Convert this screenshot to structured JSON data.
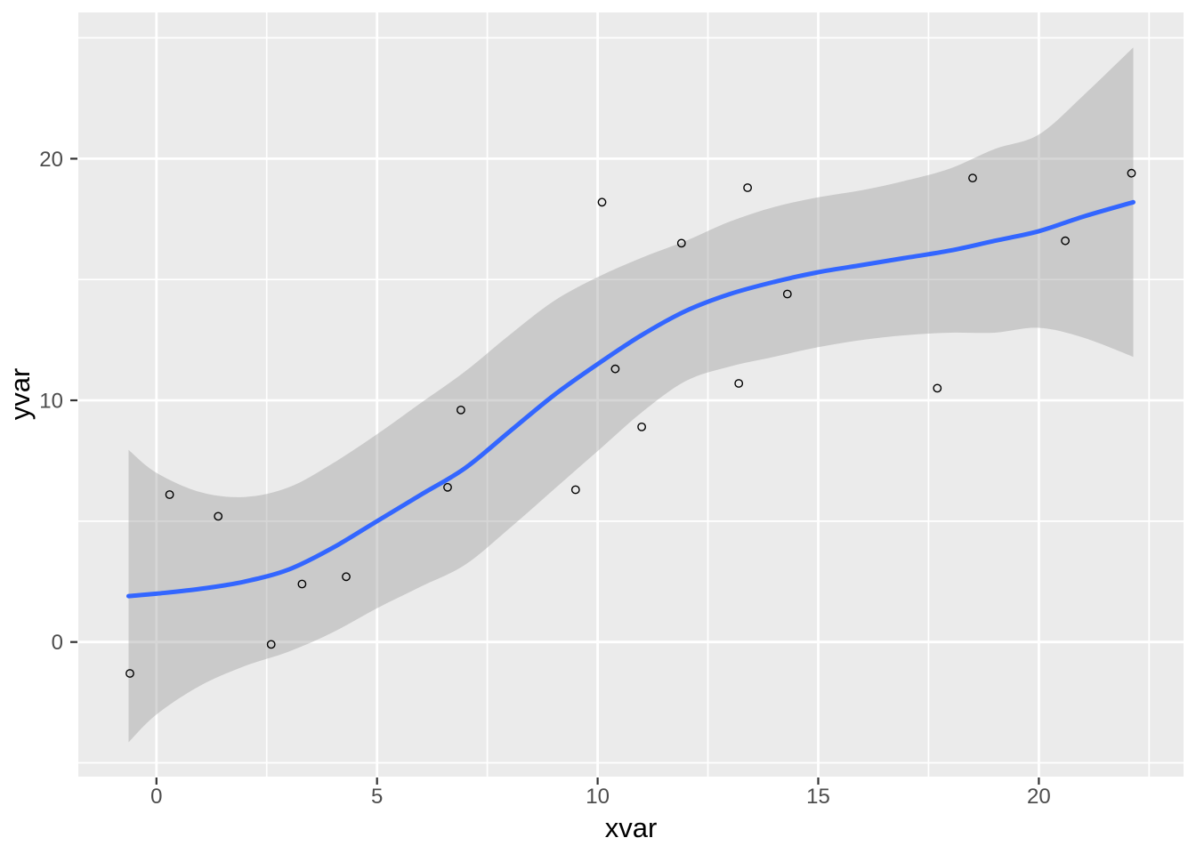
{
  "chart_data": {
    "type": "scatter",
    "title": "",
    "xlabel": "xvar",
    "ylabel": "yvar",
    "xlim": [
      -1.77,
      23.28
    ],
    "ylim": [
      -5.57,
      26.05
    ],
    "x_major_ticks": [
      0,
      5,
      10,
      15,
      20
    ],
    "x_minor_ticks": [
      2.5,
      7.5,
      12.5,
      17.5,
      22.5
    ],
    "y_major_ticks": [
      0,
      10,
      20
    ],
    "y_minor_ticks": [
      -5,
      5,
      15,
      25
    ],
    "grid": true,
    "legend": "none",
    "points": [
      [
        -0.6,
        -1.3
      ],
      [
        0.3,
        6.1
      ],
      [
        1.4,
        5.2
      ],
      [
        2.6,
        -0.1
      ],
      [
        3.3,
        2.4
      ],
      [
        4.3,
        2.7
      ],
      [
        6.6,
        6.4
      ],
      [
        6.9,
        9.6
      ],
      [
        9.5,
        6.3
      ],
      [
        10.1,
        18.2
      ],
      [
        10.4,
        11.3
      ],
      [
        11.0,
        8.9
      ],
      [
        11.9,
        16.5
      ],
      [
        13.2,
        10.7
      ],
      [
        13.4,
        18.8
      ],
      [
        14.3,
        14.4
      ],
      [
        17.7,
        10.5
      ],
      [
        18.5,
        19.2
      ],
      [
        20.6,
        16.6
      ],
      [
        22.1,
        19.4
      ]
    ],
    "smooth_line": {
      "method": "loess",
      "x": [
        -0.63,
        0,
        1,
        2,
        3,
        4,
        5,
        6,
        7,
        8,
        9,
        10,
        11,
        12,
        13,
        14,
        15,
        16,
        17,
        18,
        19,
        20,
        21,
        22.14
      ],
      "y": [
        1.9,
        2.0,
        2.2,
        2.5,
        3.0,
        3.9,
        5.0,
        6.1,
        7.2,
        8.7,
        10.2,
        11.5,
        12.7,
        13.7,
        14.4,
        14.9,
        15.3,
        15.6,
        15.9,
        16.2,
        16.6,
        17.0,
        17.6,
        18.2
      ],
      "ci_halfwidth": [
        6.05,
        5.0,
        4.0,
        3.5,
        3.4,
        3.5,
        3.6,
        3.8,
        4.0,
        4.0,
        3.9,
        3.6,
        3.2,
        2.9,
        3.0,
        3.1,
        3.1,
        3.1,
        3.2,
        3.4,
        3.8,
        4.0,
        5.0,
        6.4
      ]
    },
    "colors": {
      "panel_background": "#EBEBEB",
      "gridline": "#FFFFFF",
      "band_fill": "#999999",
      "band_opacity": "0.4",
      "line": "#3366FF",
      "point_stroke": "#000000",
      "tick_mark": "#333333",
      "tick_text": "#4D4D4D",
      "axis_title_text": "#000000"
    }
  }
}
